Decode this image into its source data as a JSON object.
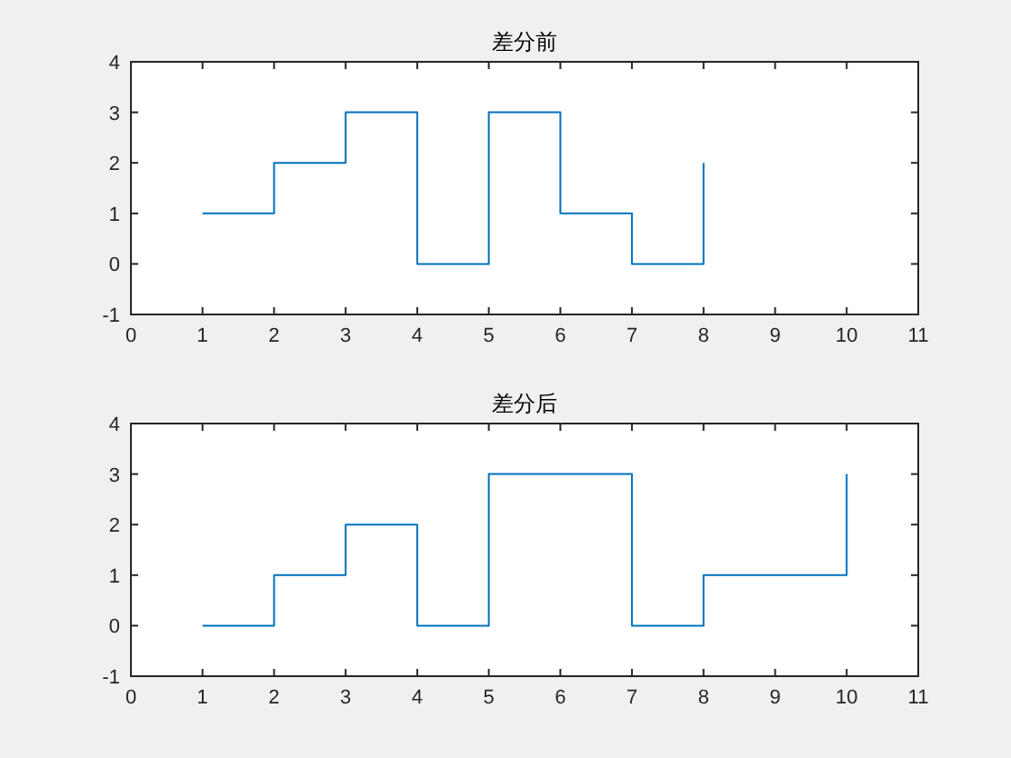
{
  "chart_data": [
    {
      "type": "step",
      "title": "差分前",
      "x": [
        1,
        2,
        3,
        4,
        5,
        6,
        7,
        8
      ],
      "values": [
        1,
        2,
        3,
        0,
        3,
        1,
        0,
        2
      ],
      "color": "#0072bd",
      "xlim": [
        0,
        11
      ],
      "ylim": [
        -1,
        4
      ],
      "xticks": [
        0,
        1,
        2,
        3,
        4,
        5,
        6,
        7,
        8,
        9,
        10,
        11
      ],
      "yticks": [
        -1,
        0,
        1,
        2,
        3,
        4
      ],
      "grid": false
    },
    {
      "type": "step",
      "title": "差分后",
      "x": [
        1,
        2,
        3,
        4,
        5,
        6,
        7,
        8,
        9,
        10
      ],
      "values": [
        0,
        1,
        2,
        0,
        3,
        3,
        0,
        1,
        1,
        3
      ],
      "color": "#0072bd",
      "xlim": [
        0,
        11
      ],
      "ylim": [
        -1,
        4
      ],
      "xticks": [
        0,
        1,
        2,
        3,
        4,
        5,
        6,
        7,
        8,
        9,
        10,
        11
      ],
      "yticks": [
        -1,
        0,
        1,
        2,
        3,
        4
      ],
      "grid": false
    }
  ]
}
